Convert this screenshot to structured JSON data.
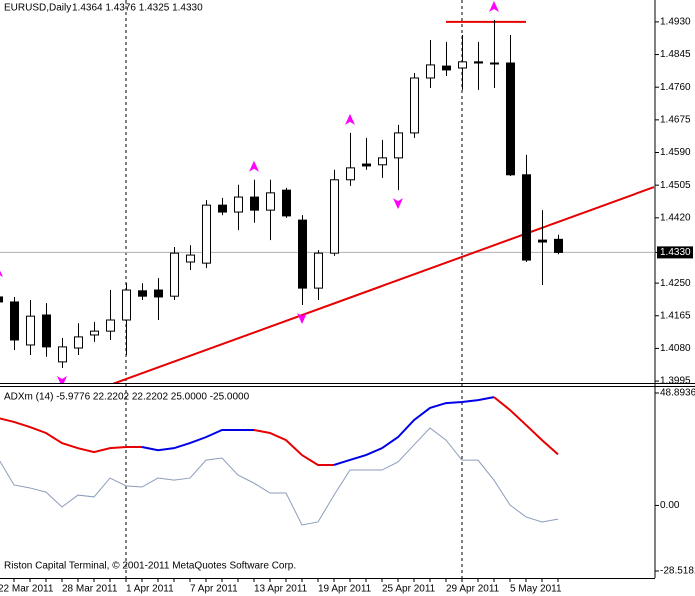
{
  "chart_data": [
    {
      "type": "candlestick",
      "title": "EURUSD,Daily",
      "ohlc_text": "1.4364 1.4376 1.4325 1.4330",
      "categories": [
        "22 Mar 2011",
        null,
        null,
        null,
        "28 Mar 2011",
        null,
        null,
        null,
        "1 Apr 2011",
        null,
        null,
        null,
        "7 Apr 2011",
        null,
        null,
        null,
        "13 Apr 2011",
        null,
        null,
        null,
        "19 Apr 2011",
        null,
        null,
        null,
        "25 Apr 2011",
        null,
        null,
        null,
        "29 Apr 2011",
        null,
        null,
        null,
        "5 May 2011",
        null,
        null,
        null
      ],
      "open": [
        1.4214,
        1.4201,
        1.4089,
        1.4167,
        1.4045,
        1.4081,
        1.4115,
        1.4125,
        1.4154,
        1.423,
        1.4232,
        1.4216,
        1.4305,
        1.4302,
        1.4453,
        1.4435,
        1.4474,
        1.444,
        1.4492,
        1.4414,
        1.4237,
        1.4328,
        1.4519,
        1.456,
        1.4558,
        1.4576,
        1.4641,
        1.4784,
        1.4815,
        1.481,
        1.4826,
        1.4823,
        1.4823,
        1.4532,
        1.4362,
        1.4364
      ],
      "high": [
        1.4245,
        1.4214,
        1.4206,
        1.4198,
        1.4107,
        1.4146,
        1.4149,
        1.4232,
        1.425,
        1.425,
        1.4263,
        1.4344,
        1.4349,
        1.4466,
        1.4472,
        1.4506,
        1.4519,
        1.4519,
        1.4498,
        1.4427,
        1.4336,
        1.4545,
        1.4641,
        1.4628,
        1.4623,
        1.4662,
        1.4797,
        1.4883,
        1.4878,
        1.4896,
        1.4878,
        1.4935,
        1.4896,
        1.4584,
        1.444,
        1.4376
      ],
      "low": [
        1.4193,
        1.4076,
        1.4063,
        1.4058,
        1.4029,
        1.4063,
        1.4097,
        1.4102,
        1.4063,
        1.4206,
        1.4154,
        1.4206,
        1.4284,
        1.4289,
        1.4427,
        1.4388,
        1.4407,
        1.4362,
        1.442,
        1.4193,
        1.4206,
        1.4321,
        1.4503,
        1.4545,
        1.4524,
        1.4492,
        1.4628,
        1.4758,
        1.4789,
        1.4753,
        1.4753,
        1.4758,
        1.4529,
        1.4305,
        1.4245,
        1.4325
      ],
      "close": [
        1.4201,
        1.4102,
        1.4164,
        1.4084,
        1.4084,
        1.411,
        1.4125,
        1.4154,
        1.4232,
        1.4216,
        1.4214,
        1.4328,
        1.4323,
        1.4453,
        1.4435,
        1.4474,
        1.444,
        1.4485,
        1.4425,
        1.4237,
        1.4328,
        1.4519,
        1.455,
        1.4555,
        1.4576,
        1.4641,
        1.4784,
        1.4818,
        1.4805,
        1.4826,
        1.4823,
        1.4821,
        1.4532,
        1.431,
        1.4357,
        1.433
      ],
      "fractals_up": [
        1.4245,
        null,
        null,
        null,
        null,
        null,
        null,
        null,
        null,
        null,
        null,
        null,
        null,
        null,
        null,
        null,
        1.4519,
        null,
        null,
        null,
        null,
        null,
        1.4641,
        null,
        null,
        null,
        null,
        null,
        null,
        null,
        null,
        1.4935,
        null,
        null,
        null,
        null
      ],
      "fractals_down": [
        null,
        null,
        null,
        null,
        1.4029,
        null,
        null,
        null,
        null,
        null,
        null,
        null,
        null,
        null,
        null,
        null,
        null,
        null,
        null,
        1.4193,
        null,
        null,
        null,
        null,
        null,
        1.4492,
        null,
        null,
        null,
        null,
        null,
        null,
        null,
        null,
        null,
        null
      ],
      "fractal_color": "#ff00ff",
      "up_color": "#ffffff",
      "down_color": "#000000",
      "trendline": {
        "color": "#e60000",
        "values": [
          1.3985,
          1.45
        ]
      },
      "level_line": {
        "color": "#e60000",
        "value": 1.493
      },
      "bid_line": true,
      "ylim": [
        1.399,
        1.4987
      ],
      "yticks": [
        {
          "value": 1.493,
          "label": "1.4930"
        },
        1.4845,
        {
          "value": 1.476,
          "label": "1.4760"
        },
        1.4675,
        {
          "value": 1.459,
          "label": "1.4590"
        },
        1.4505,
        {
          "value": 1.442,
          "label": "1.4420"
        },
        {
          "value": 1.433,
          "label": "1.4330"
        },
        {
          "value": 1.425,
          "label": "1.4250"
        },
        1.4165,
        {
          "value": 1.408,
          "label": "1.4080"
        },
        1.3995
      ]
    },
    {
      "type": "line",
      "title": "ADXm (14) -5.9776 22.2202 22.2202 25.0000 -25.0000",
      "series": [
        {
          "color": "#e60000",
          "width": 2,
          "values": [
            38.0,
            36.3,
            34.1,
            31.5,
            27.1,
            24.9,
            23.2,
            24.9,
            25.4,
            25.4,
            null,
            null,
            null,
            null,
            null,
            null,
            32.8,
            31.5,
            28.4,
            21.9,
            17.6,
            17.6,
            null,
            null,
            null,
            null,
            null,
            null,
            null,
            null,
            null,
            47.1,
            41.5,
            35.0,
            28.4,
            22.2202
          ]
        },
        {
          "color": "#0000e6",
          "width": 2,
          "values": [
            null,
            null,
            null,
            null,
            null,
            null,
            null,
            null,
            null,
            25.4,
            24.0,
            24.9,
            27.1,
            29.7,
            32.8,
            32.8,
            32.8,
            null,
            null,
            null,
            null,
            17.6,
            19.8,
            21.9,
            24.9,
            29.7,
            37.1,
            42.4,
            44.5,
            45.0,
            45.8,
            47.1,
            null,
            null,
            null,
            null
          ]
        },
        {
          "color": "#8c9cbc",
          "width": 1,
          "values": [
            20.6,
            8.9,
            7.6,
            5.8,
            -0.7,
            4.5,
            3.7,
            11.9,
            8.5,
            8.0,
            11.9,
            11.0,
            11.9,
            19.7,
            20.6,
            13.2,
            9.7,
            5.4,
            5.4,
            -8.5,
            -7.2,
            4.5,
            15.4,
            15.4,
            15.4,
            18.9,
            26.3,
            33.7,
            28.4,
            19.7,
            19.7,
            11.0,
            0.2,
            -5.0,
            -7.2,
            -5.9776
          ]
        }
      ],
      "ylim": [
        -31.56,
        51.5
      ],
      "yticks": [
        48.8936,
        {
          "value": 0,
          "label": "0.00"
        },
        -28.5181
      ]
    }
  ],
  "footer": "Riston Capital Terminal, © 2001-2011 MetaQuotes Software Corp."
}
